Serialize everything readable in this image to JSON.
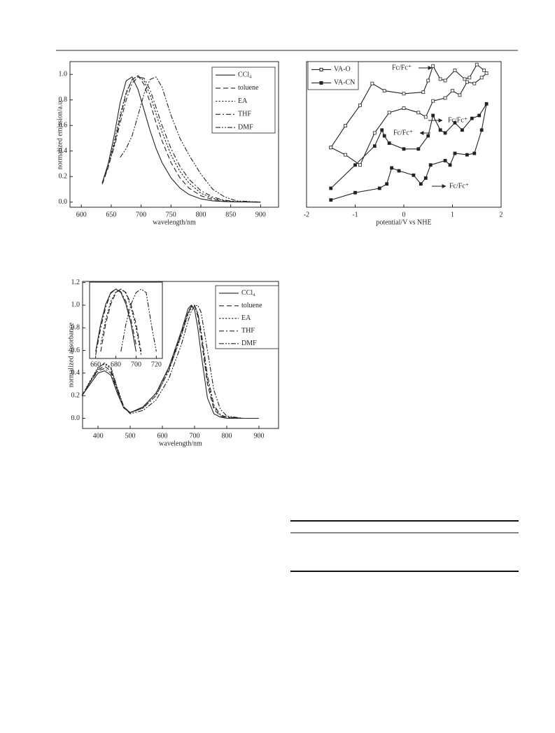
{
  "chart_data": [
    {
      "type": "line",
      "x_label": "wavelength/nm",
      "y_label": "normalized emission/a.u.",
      "xlim": [
        581,
        930
      ],
      "ylim": [
        -0.04,
        1.1
      ],
      "xticks": [
        600,
        650,
        700,
        750,
        800,
        850,
        900
      ],
      "yticks": [
        {
          "value": 0,
          "label": "0.0"
        },
        0.2,
        0.4,
        0.6,
        0.8,
        {
          "value": 1,
          "label": "1.0"
        }
      ],
      "legend": "upper right",
      "x": [
        635,
        645,
        655,
        665,
        675,
        685,
        695,
        705,
        715,
        725,
        735,
        750,
        765,
        780,
        800,
        820,
        840,
        860,
        900
      ],
      "series": [
        {
          "name": "CCl₄",
          "color": "#222222",
          "line_style": "solid",
          "values": [
            0.15,
            0.3,
            0.52,
            0.78,
            0.95,
            0.98,
            0.88,
            0.72,
            0.56,
            0.42,
            0.31,
            0.19,
            0.11,
            0.06,
            0.025,
            0.01,
            0.004,
            0.001,
            0
          ]
        },
        {
          "name": "toluene",
          "color": "#222222",
          "line_style": "dashed",
          "values": [
            0.14,
            0.27,
            0.45,
            0.66,
            0.85,
            0.96,
            0.99,
            0.92,
            0.78,
            0.62,
            0.48,
            0.31,
            0.19,
            0.11,
            0.05,
            0.02,
            0.008,
            0.002,
            0
          ]
        },
        {
          "name": "EA",
          "color": "#222222",
          "line_style": "dotted",
          "values": [
            0.15,
            0.3,
            0.47,
            0.68,
            0.86,
            0.96,
            0.99,
            0.95,
            0.84,
            0.69,
            0.55,
            0.37,
            0.24,
            0.15,
            0.07,
            0.03,
            0.01,
            0.003,
            0
          ]
        },
        {
          "name": "THF",
          "color": "#222222",
          "line_style": "dashdot",
          "values": [
            0.15,
            0.28,
            0.43,
            0.62,
            0.8,
            0.93,
            0.98,
            0.97,
            0.88,
            0.74,
            0.6,
            0.42,
            0.28,
            0.18,
            0.09,
            0.04,
            0.015,
            0.004,
            0
          ]
        },
        {
          "name": "DMF",
          "color": "#222222",
          "line_style": "dashdotdot",
          "values": [
            null,
            null,
            null,
            0.35,
            0.42,
            0.52,
            0.68,
            0.85,
            0.96,
            0.98,
            0.9,
            0.68,
            0.5,
            0.37,
            0.22,
            0.1,
            0.04,
            0.01,
            0
          ]
        }
      ]
    },
    {
      "type": "line",
      "x_label": "potential/V vs NHE",
      "xlim": [
        -2,
        2
      ],
      "ylim": [
        0,
        10
      ],
      "xticks": [
        -2,
        -1,
        0,
        1,
        2
      ],
      "legend": "upper left",
      "annotations": [
        "Fc/Fc⁺",
        "Fc/Fc⁺",
        "Fc/Fc⁺",
        "Fc/Fc⁺"
      ],
      "series": [
        {
          "name": "VA-O",
          "color": "#222222",
          "line_style": "solid",
          "marker": "open-square",
          "x": [
            -1.5,
            -1.2,
            -0.9,
            -0.65,
            -0.4,
            0,
            0.4,
            0.5,
            0.6,
            0.75,
            0.85,
            1.05,
            1.25,
            1.35,
            1.5,
            1.65,
            1.7,
            1.6,
            1.45,
            1.3,
            1.15,
            1.0,
            0.85,
            0.6,
            0.45,
            0.3,
            0,
            -0.3,
            -0.6,
            -0.9,
            -1.2,
            -1.5
          ],
          "values": [
            4.1,
            5.6,
            7.0,
            8.5,
            8.0,
            7.8,
            7.9,
            8.7,
            9.7,
            8.8,
            8.7,
            9.4,
            8.8,
            8.9,
            9.8,
            9.4,
            9.2,
            8.9,
            8.5,
            8.6,
            7.7,
            8.0,
            7.5,
            7.3,
            6.2,
            6.5,
            6.8,
            6.5,
            5.1,
            2.9,
            3.6,
            4.1
          ]
        },
        {
          "name": "VA-CN",
          "color": "#222222",
          "line_style": "solid",
          "marker": "filled-square",
          "x": [
            -1.5,
            -1.0,
            -0.6,
            -0.45,
            -0.4,
            -0.3,
            0,
            0.3,
            0.5,
            0.6,
            0.75,
            0.85,
            1.05,
            1.2,
            1.4,
            1.55,
            1.7,
            1.6,
            1.45,
            1.3,
            1.05,
            0.95,
            0.85,
            0.55,
            0.45,
            0.35,
            0.2,
            -0.1,
            -0.25,
            -0.35,
            -0.5,
            -1.0,
            -1.5
          ],
          "values": [
            1.3,
            2.9,
            4.2,
            5.3,
            4.9,
            4.4,
            4.0,
            4.0,
            4.9,
            6.3,
            5.3,
            5.1,
            5.8,
            5.3,
            6.1,
            6.3,
            7.1,
            5.3,
            3.7,
            3.6,
            3.7,
            2.9,
            3.2,
            2.9,
            2.0,
            1.6,
            2.2,
            2.5,
            2.7,
            1.6,
            1.3,
            1.0,
            0.5
          ]
        }
      ]
    },
    {
      "type": "line",
      "x_label": "wavelength/nm",
      "y_label": "normalized absorbance",
      "xlim": [
        352,
        961
      ],
      "ylim": [
        -0.09,
        1.21
      ],
      "xticks": [
        400,
        500,
        600,
        700,
        800,
        900
      ],
      "yticks": [
        {
          "value": 0,
          "label": "0.0"
        },
        0.2,
        0.4,
        0.6,
        0.8,
        {
          "value": 1,
          "label": "1.0"
        },
        1.2
      ],
      "legend": "upper right",
      "x": [
        350,
        375,
        400,
        420,
        440,
        460,
        480,
        500,
        540,
        580,
        620,
        660,
        680,
        690,
        700,
        710,
        720,
        740,
        760,
        780,
        800,
        850,
        900
      ],
      "series": [
        {
          "name": "CCl₄",
          "color": "#222222",
          "line_style": "solid",
          "values": [
            0.2,
            0.3,
            0.4,
            0.42,
            0.38,
            0.22,
            0.09,
            0.05,
            0.1,
            0.22,
            0.45,
            0.78,
            0.97,
            1.0,
            0.96,
            0.8,
            0.58,
            0.18,
            0.04,
            0.01,
            0,
            0,
            0
          ]
        },
        {
          "name": "toluene",
          "color": "#222222",
          "line_style": "dashed",
          "values": [
            0.2,
            0.32,
            0.43,
            0.46,
            0.42,
            0.25,
            0.1,
            0.05,
            0.1,
            0.22,
            0.44,
            0.76,
            0.94,
            0.99,
            1.0,
            0.9,
            0.72,
            0.3,
            0.08,
            0.02,
            0.005,
            0,
            0
          ]
        },
        {
          "name": "EA",
          "color": "#222222",
          "line_style": "dotted",
          "values": [
            0.2,
            0.33,
            0.45,
            0.48,
            0.44,
            0.26,
            0.1,
            0.05,
            0.09,
            0.2,
            0.42,
            0.74,
            0.92,
            0.98,
            1.0,
            0.92,
            0.76,
            0.34,
            0.1,
            0.03,
            0.01,
            0,
            0
          ]
        },
        {
          "name": "THF",
          "color": "#222222",
          "line_style": "dashdot",
          "values": [
            0.2,
            0.32,
            0.42,
            0.44,
            0.4,
            0.24,
            0.1,
            0.05,
            0.09,
            0.2,
            0.42,
            0.75,
            0.93,
            0.99,
            1.0,
            0.93,
            0.78,
            0.38,
            0.12,
            0.03,
            0.01,
            0,
            0
          ]
        },
        {
          "name": "DMF",
          "color": "#222222",
          "line_style": "dashdotdot",
          "values": [
            0.2,
            0.32,
            0.44,
            0.49,
            0.45,
            0.27,
            0.1,
            0.04,
            0.07,
            0.16,
            0.35,
            0.66,
            0.86,
            0.95,
            0.99,
            1.0,
            0.94,
            0.6,
            0.25,
            0.08,
            0.02,
            0,
            0
          ]
        }
      ]
    },
    {
      "type": "line",
      "xlim": [
        654,
        726
      ],
      "ylim": [
        0,
        1.1
      ],
      "xticks": [
        660,
        680,
        700,
        720
      ],
      "x": [
        660,
        665,
        670,
        675,
        680,
        685,
        690,
        695,
        700,
        705,
        710,
        715,
        720
      ],
      "series": [
        {
          "color": "#222222",
          "line_style": "solid",
          "values": [
            0.1,
            0.5,
            0.78,
            0.95,
            1.0,
            0.95,
            0.78,
            0.5,
            0.1,
            null,
            null,
            null,
            null
          ]
        },
        {
          "color": "#222222",
          "line_style": "dashed",
          "values": [
            null,
            0.1,
            0.5,
            0.78,
            0.95,
            1.0,
            0.95,
            0.78,
            0.5,
            0.1,
            null,
            null,
            null
          ]
        },
        {
          "color": "#222222",
          "line_style": "dotted",
          "values": [
            null,
            0.2,
            0.56,
            0.82,
            0.96,
            1.0,
            0.94,
            0.74,
            0.44,
            0.05,
            null,
            null,
            null
          ]
        },
        {
          "color": "#222222",
          "line_style": "dashdot",
          "values": [
            0.05,
            0.44,
            0.74,
            0.94,
            1.0,
            0.96,
            0.82,
            0.56,
            0.2,
            null,
            null,
            null,
            null
          ]
        },
        {
          "color": "#222222",
          "line_style": "dashdotdot",
          "values": [
            null,
            null,
            null,
            null,
            null,
            0.1,
            0.5,
            0.78,
            0.95,
            1.0,
            0.95,
            0.5,
            0.1
          ]
        }
      ]
    }
  ]
}
